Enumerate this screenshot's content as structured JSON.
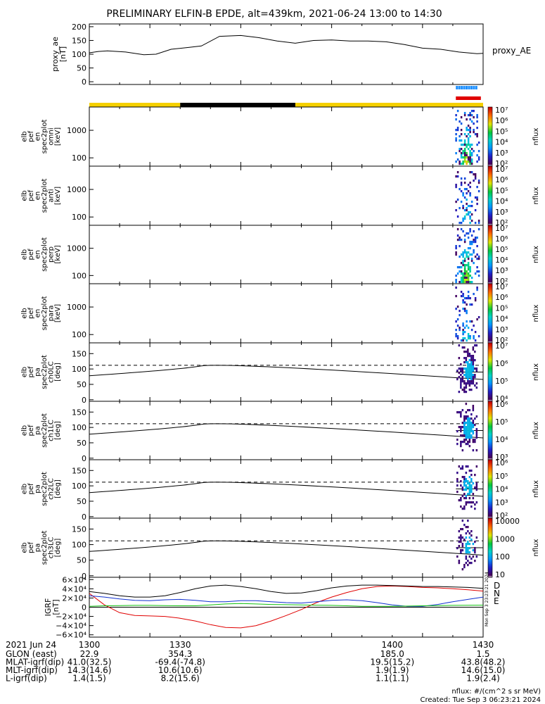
{
  "title": "PRELIMINARY ELFIN-B EPDE, alt=439km, 2021-06-24 13:00 to 14:30",
  "colors": {
    "sci_zone": "#1e90ff",
    "epd_active": "#e00000",
    "sunlit": "#f5d000",
    "eclipse": "#000000",
    "dip": "#000000",
    "D": "#e00000",
    "N": "#1030d0",
    "E": "#10c010"
  },
  "chart_data": [
    {
      "type": "line",
      "panel": "proxy_ae",
      "ylabel": "proxy_ae\n[nT]",
      "legend": "proxy_AE",
      "ylim": [
        -10,
        210
      ],
      "yticks": [
        "200",
        "150",
        "100",
        "50",
        "0"
      ],
      "x": [
        1300,
        1303,
        1306,
        1312,
        1318,
        1322,
        1327,
        1333,
        1337,
        1343,
        1350,
        1356,
        1362,
        1368,
        1374,
        1380,
        1386,
        1392,
        1398,
        1404,
        1410,
        1416,
        1422,
        1428,
        1430
      ],
      "y": [
        105,
        110,
        112,
        108,
        98,
        100,
        118,
        125,
        130,
        165,
        168,
        160,
        148,
        140,
        150,
        152,
        148,
        148,
        145,
        135,
        122,
        118,
        108,
        102,
        103
      ]
    },
    {
      "type": "table",
      "panel": "sci_zones",
      "sci_zone_min": [
        1421,
        1427.5
      ],
      "epd_active_min": [
        1421,
        1428.5
      ],
      "sunlit": [
        [
          1300,
          1330
        ],
        [
          1368,
          1430
        ]
      ],
      "eclipse": [
        [
          1330,
          1368
        ]
      ]
    },
    {
      "type": "heatmap",
      "panel": "omni",
      "ylabel": "elb\npef\nen\nspec2plot\nomni\n[keV]",
      "yscale": "log",
      "ylim": [
        50,
        7000
      ],
      "yticks": [
        "1000",
        "100"
      ],
      "zlabel": "nflux",
      "zticks": [
        "10⁷",
        "10⁶",
        "10⁵",
        "10⁴",
        "10³",
        "10²"
      ],
      "active_min": [
        1420.8,
        1428.4
      ]
    },
    {
      "type": "heatmap",
      "panel": "anti",
      "ylabel": "elb\npef\nen\nspec2plot\nanti\n[keV]",
      "yscale": "log",
      "ylim": [
        50,
        7000
      ],
      "yticks": [
        "1000",
        "100"
      ],
      "zlabel": "nflux",
      "zticks": [
        "10⁷",
        "10⁶",
        "10⁵",
        "10⁴",
        "10³",
        "10²"
      ],
      "active_min": [
        1420.8,
        1428.4
      ]
    },
    {
      "type": "heatmap",
      "panel": "perp",
      "ylabel": "elb\npef\nen\nspec2plot\nperp\n[keV]",
      "yscale": "log",
      "ylim": [
        50,
        7000
      ],
      "yticks": [
        "1000",
        "100"
      ],
      "zlabel": "nflux",
      "zticks": [
        "10⁷",
        "10⁶",
        "10⁵",
        "10⁴",
        "10³",
        "10²"
      ],
      "active_min": [
        1420.8,
        1428.4
      ]
    },
    {
      "type": "heatmap",
      "panel": "para",
      "ylabel": "elb\npef\nen\nspec2plot\npara\n[keV]",
      "yscale": "log",
      "ylim": [
        50,
        7000
      ],
      "yticks": [
        "1000",
        "100"
      ],
      "zlabel": "nflux",
      "zticks": [
        "10⁷",
        "10⁶",
        "10⁵",
        "10⁴",
        "10³",
        "10²"
      ],
      "active_min": [
        1420.8,
        1428.4
      ]
    },
    {
      "type": "heatmap",
      "panel": "ch0LC",
      "ylabel": "elb\npef\npa\nspec2plot\nch0LC\n[deg]",
      "ylim": [
        -5,
        185
      ],
      "yticks": [
        "150",
        "100",
        "50",
        "0"
      ],
      "zlabel": "nflux",
      "zticks": [
        "10⁷",
        "10⁶",
        "10⁵",
        "10⁴"
      ],
      "lc_dashed": 112,
      "lc_solid": [
        78,
        110,
        66
      ]
    },
    {
      "type": "heatmap",
      "panel": "ch1LC",
      "ylabel": "elb\npef\npa\nspec2plot\nch1LC\n[deg]",
      "ylim": [
        -5,
        185
      ],
      "yticks": [
        "150",
        "100",
        "50",
        "0"
      ],
      "zlabel": "nflux",
      "zticks": [
        "10⁶",
        "10⁵",
        "10⁴",
        "10³"
      ],
      "lc_dashed": 112,
      "lc_solid": [
        78,
        110,
        66
      ]
    },
    {
      "type": "heatmap",
      "panel": "ch2LC",
      "ylabel": "elb\npef\npa\nspec2plot\nch2LC\n[deg]",
      "ylim": [
        -5,
        185
      ],
      "yticks": [
        "150",
        "100",
        "50",
        "0"
      ],
      "zlabel": "nflux",
      "zticks": [
        "10⁶",
        "10⁵",
        "10⁴",
        "10³",
        "10²"
      ],
      "lc_dashed": 112,
      "lc_solid": [
        78,
        110,
        66
      ]
    },
    {
      "type": "heatmap",
      "panel": "ch3LC",
      "ylabel": "elb\npef\npa\nspec2plot\nch3LC\n[deg]",
      "ylim": [
        -5,
        185
      ],
      "yticks": [
        "150",
        "100",
        "50",
        "0"
      ],
      "zlabel": "nflux",
      "zticks": [
        "10000",
        "1000",
        "100",
        "10"
      ],
      "lc_dashed": 112,
      "lc_solid": [
        78,
        110,
        66
      ]
    },
    {
      "type": "line",
      "panel": "igrf",
      "ylabel": "IGRF\n[nT]",
      "ylim": [
        -65000,
        65000
      ],
      "yticks": [
        "6×10⁴",
        "4×10⁴",
        "2×10⁴",
        "0",
        "−2×10⁴",
        "−4×10⁴",
        "−6×10⁴"
      ],
      "legend": [
        "D",
        "N",
        "E"
      ],
      "x": [
        1300,
        1305,
        1310,
        1315,
        1320,
        1325,
        1330,
        1335,
        1340,
        1345,
        1350,
        1355,
        1360,
        1365,
        1370,
        1375,
        1380,
        1385,
        1390,
        1395,
        1400,
        1405,
        1410,
        1415,
        1420,
        1425,
        1430
      ],
      "series": [
        {
          "name": "D",
          "values": [
            30000,
            5000,
            -12000,
            -18000,
            -19000,
            -20000,
            -24000,
            -30000,
            -38000,
            -44000,
            -45000,
            -40000,
            -30000,
            -18000,
            -5000,
            10000,
            22000,
            32000,
            40000,
            45000,
            46000,
            45000,
            43000,
            42000,
            40000,
            38000,
            35000
          ]
        },
        {
          "name": "N",
          "values": [
            25000,
            22000,
            18000,
            15000,
            14000,
            16000,
            17000,
            15000,
            12000,
            12000,
            14000,
            14000,
            12000,
            10000,
            9000,
            12000,
            15000,
            16000,
            14000,
            10000,
            5000,
            2000,
            2000,
            6000,
            12000,
            17000,
            22000
          ]
        },
        {
          "name": "E",
          "values": [
            2000,
            3000,
            3500,
            4000,
            4000,
            3500,
            3000,
            3000,
            5000,
            7000,
            8000,
            7000,
            6000,
            5500,
            5000,
            4500,
            4000,
            3000,
            2000,
            2000,
            2000,
            2500,
            3000,
            3500,
            4000,
            4200,
            4500
          ]
        },
        {
          "name": "",
          "values": [
            34000,
            30000,
            25000,
            22000,
            22000,
            25000,
            32000,
            40000,
            46000,
            48000,
            45000,
            40000,
            34000,
            30000,
            31000,
            36000,
            42000,
            46000,
            48000,
            48000,
            47000,
            46000,
            45000,
            45000,
            44000,
            43000,
            41000
          ]
        }
      ]
    }
  ],
  "xaxis": {
    "date": "2021 Jun 24",
    "ticks": [
      "1300",
      "1330",
      "1400",
      "1430"
    ],
    "tick_min": [
      1300,
      1330,
      1400,
      1430
    ]
  },
  "ephemeris": [
    {
      "label": "GLON (east)",
      "values": [
        "22.9",
        "354.3",
        "185.0",
        "1.5"
      ]
    },
    {
      "label": "MLAT-igrf(dip)",
      "values": [
        "41.0(32.5)",
        "-69.4(-74.8)",
        "19.5(15.2)",
        "43.8(48.2)"
      ]
    },
    {
      "label": "MLT-igrf(dip)",
      "values": [
        "14.3(14.6)",
        "10.6(10.6)",
        "1.9(1.9)",
        "14.6(15.0)"
      ]
    },
    {
      "label": "L-igrf(dip)",
      "values": [
        "1.4(1.5)",
        "8.2(15.6)",
        "1.1(1.1)",
        "1.9(2.4)"
      ]
    }
  ],
  "footer": {
    "units": "nflux: #/(cm^2 s sr MeV)",
    "created": "Created: Tue Sep  3 06:23:21 2024",
    "side_stamp": "Mon Sep  3 23:23:21 2024"
  }
}
